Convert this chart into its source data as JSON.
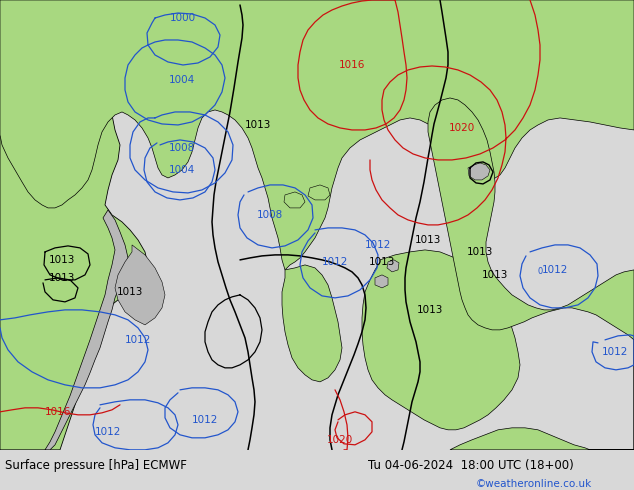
{
  "title_left": "Surface pressure [hPa] ECMWF",
  "title_right": "Tu 04-06-2024  18:00 UTC (18+00)",
  "copyright": "©weatheronline.co.uk",
  "bg_color": "#d8d8d8",
  "map_bg_color": "#e0e0e0",
  "land_green_color": "#a8d880",
  "land_gray_color": "#b8b8b8",
  "ocean_color": "#e0e0e0",
  "coast_color": "#000000",
  "isobar_black_color": "#000000",
  "isobar_blue_color": "#2255cc",
  "isobar_red_color": "#cc1111",
  "label_black": "#000000",
  "label_blue": "#2255cc",
  "label_red": "#cc1111",
  "footer_bg": "#c0c0c0",
  "fig_width": 6.34,
  "fig_height": 4.9,
  "dpi": 100
}
